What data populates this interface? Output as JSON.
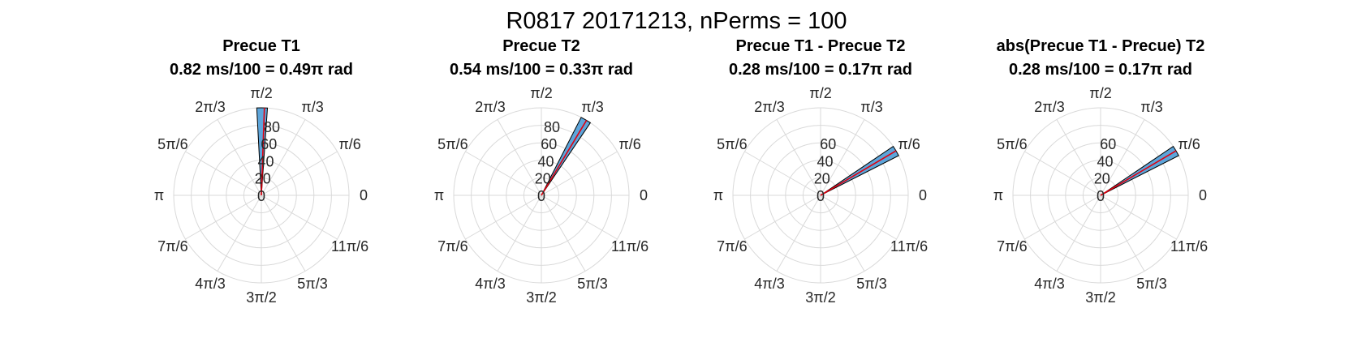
{
  "figure": {
    "suptitle": "R0817 20171213, nPerms = 100"
  },
  "colors": {
    "bar_fill": "#5DA5DA",
    "bar_edge": "#000000",
    "mean_line": "#E0000F",
    "grid": "#D9D9D9"
  },
  "chart_data": [
    {
      "type": "polar_histogram",
      "title": "Precue T1",
      "subtitle": "0.82 ms/100 = 0.49π rad",
      "theta_ticks": [
        "0",
        "π/6",
        "π/3",
        "π/2",
        "2π/3",
        "5π/6",
        "π",
        "7π/6",
        "4π/3",
        "3π/2",
        "5π/3",
        "11π/6"
      ],
      "r_ticks": [
        "0",
        "20",
        "40",
        "60",
        "80"
      ],
      "rlim": [
        0,
        100
      ],
      "grid": true,
      "bars": [
        {
          "theta_start_deg": 86,
          "theta_end_deg": 93,
          "count": 100
        }
      ],
      "mean_vector": {
        "theta_deg": 88,
        "r": 100
      }
    },
    {
      "type": "polar_histogram",
      "title": "Precue T2",
      "subtitle": "0.54 ms/100 = 0.33π rad",
      "theta_ticks": [
        "0",
        "π/6",
        "π/3",
        "π/2",
        "2π/3",
        "5π/6",
        "π",
        "7π/6",
        "4π/3",
        "3π/2",
        "5π/3",
        "11π/6"
      ],
      "r_ticks": [
        "0",
        "20",
        "40",
        "60",
        "80"
      ],
      "rlim": [
        0,
        100
      ],
      "grid": true,
      "bars": [
        {
          "theta_start_deg": 56,
          "theta_end_deg": 63,
          "count": 100
        }
      ],
      "mean_vector": {
        "theta_deg": 59,
        "r": 100
      }
    },
    {
      "type": "polar_histogram",
      "title": "Precue T1 - Precue T2",
      "subtitle": "0.28 ms/100 = 0.17π rad",
      "theta_ticks": [
        "0",
        "π/6",
        "π/3",
        "π/2",
        "2π/3",
        "5π/6",
        "π",
        "7π/6",
        "4π/3",
        "3π/2",
        "5π/3",
        "11π/6"
      ],
      "r_ticks": [
        "0",
        "20",
        "40",
        "60"
      ],
      "rlim": [
        0,
        100
      ],
      "grid": true,
      "bars": [
        {
          "theta_start_deg": 27,
          "theta_end_deg": 34,
          "count": 100
        }
      ],
      "mean_vector": {
        "theta_deg": 30.6,
        "r": 100
      }
    },
    {
      "type": "polar_histogram",
      "title": "abs(Precue T1 - Precue) T2",
      "subtitle": "0.28 ms/100 = 0.17π rad",
      "theta_ticks": [
        "0",
        "π/6",
        "π/3",
        "π/2",
        "2π/3",
        "5π/6",
        "π",
        "7π/6",
        "4π/3",
        "3π/2",
        "5π/3",
        "11π/6"
      ],
      "r_ticks": [
        "0",
        "20",
        "40",
        "60"
      ],
      "rlim": [
        0,
        100
      ],
      "grid": true,
      "bars": [
        {
          "theta_start_deg": 27,
          "theta_end_deg": 34,
          "count": 100
        }
      ],
      "mean_vector": {
        "theta_deg": 30.6,
        "r": 100
      }
    }
  ]
}
